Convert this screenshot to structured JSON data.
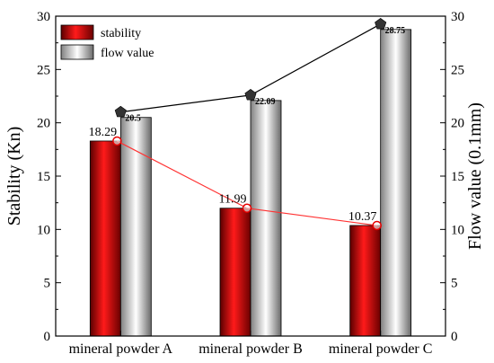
{
  "chart_data": {
    "type": "bar",
    "categories": [
      "mineral powder A",
      "mineral powder B",
      "mineral powder C"
    ],
    "series": [
      {
        "name": "stability",
        "axis": "left",
        "values": [
          18.29,
          11.99,
          10.37
        ],
        "value_labels": [
          "18.29",
          "11.99",
          "10.37"
        ],
        "color": "#e60000",
        "line_color": "#ff3333"
      },
      {
        "name": "flow value",
        "axis": "right",
        "values": [
          20.5,
          22.09,
          28.75
        ],
        "value_labels": [
          "20.5",
          "22.09",
          "28.75"
        ],
        "color": "#cfcfcf",
        "line_color": "#000000"
      }
    ],
    "ylabel": "Stability (Kn)",
    "y2label": "Flow value (0.1mm)",
    "ylim": [
      0,
      30
    ],
    "y2lim": [
      0,
      30
    ],
    "yticks": [
      0,
      5,
      10,
      15,
      20,
      25,
      30
    ],
    "y2ticks": [
      0,
      5,
      10,
      15,
      20,
      25,
      30
    ],
    "legend_position": "top-left",
    "grid": false
  }
}
